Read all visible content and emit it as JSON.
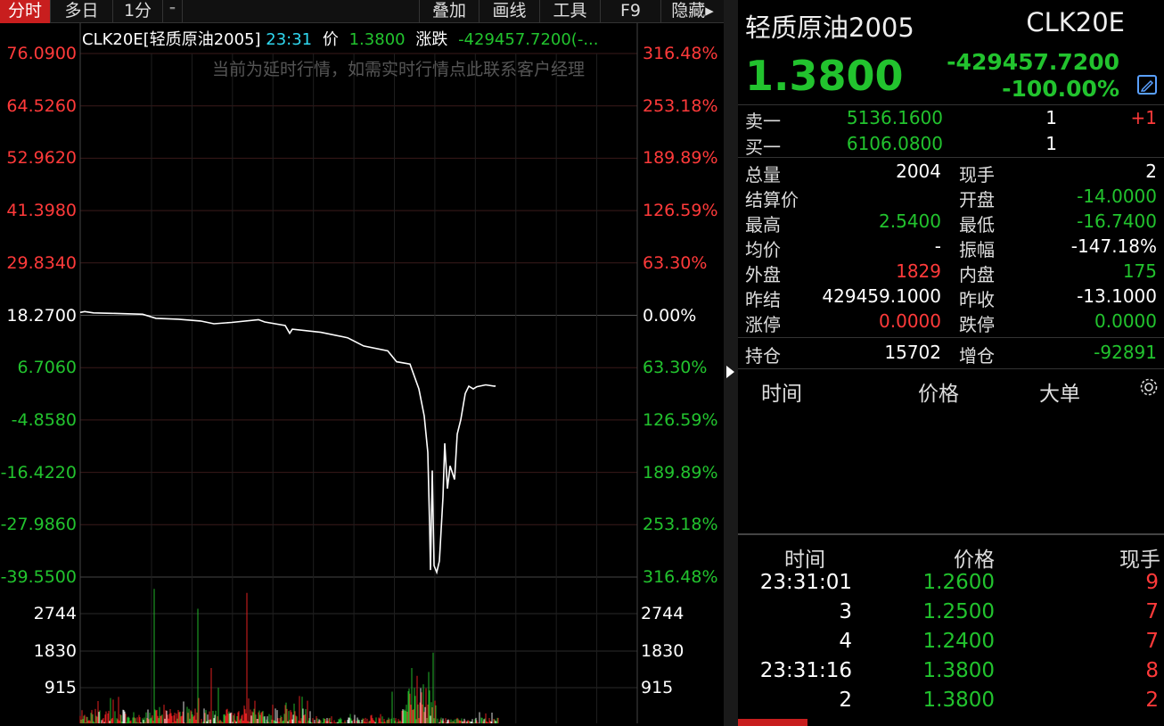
{
  "toolbar": {
    "tabs": [
      "分时",
      "多日",
      "1分",
      "⁼"
    ],
    "right_buttons": [
      "叠加",
      "画线",
      "工具",
      "F9",
      "隐藏▸"
    ]
  },
  "chart": {
    "symbol_label": "CLK20E[轻质原油2005]",
    "time": "23:31",
    "price_label": "价",
    "price_value": "1.3800",
    "change_label": "涨跌",
    "change_value": "-429457.7200(-...",
    "notice": "当前为延时行情，如需实时行情点此联系客户经理",
    "y_left": [
      "76.0900",
      "64.5260",
      "52.9620",
      "41.3980",
      "29.8340",
      "18.2700",
      "6.7060",
      "-4.8580",
      "-16.4220",
      "-27.9860",
      "-39.5500"
    ],
    "y_right": [
      "316.48%",
      "253.18%",
      "189.89%",
      "126.59%",
      "63.30%",
      "0.00%",
      "63.30%",
      "126.59%",
      "189.89%",
      "253.18%",
      "316.48%"
    ],
    "vol_left": [
      "2744",
      "1830",
      "915"
    ],
    "vol_right": [
      "2744",
      "1830",
      "915"
    ]
  },
  "chart_data": {
    "type": "line",
    "ylim": [
      -39.55,
      76.09
    ],
    "base": 18.27,
    "price_points": [
      [
        0,
        18.9
      ],
      [
        5,
        19.1
      ],
      [
        15,
        18.8
      ],
      [
        35,
        18.7
      ],
      [
        70,
        18.5
      ],
      [
        85,
        17.6
      ],
      [
        110,
        17.4
      ],
      [
        135,
        17.0
      ],
      [
        150,
        16.4
      ],
      [
        170,
        16.7
      ],
      [
        200,
        17.3
      ],
      [
        207,
        16.8
      ],
      [
        230,
        16.0
      ],
      [
        235,
        14.3
      ],
      [
        238,
        15.2
      ],
      [
        270,
        14.5
      ],
      [
        300,
        13.3
      ],
      [
        318,
        11.5
      ],
      [
        345,
        10.4
      ],
      [
        355,
        8.0
      ],
      [
        370,
        7.5
      ],
      [
        380,
        2.0
      ],
      [
        386,
        -4.0
      ],
      [
        390,
        -12.0
      ],
      [
        392,
        -28.0
      ],
      [
        393,
        -38.0
      ],
      [
        395,
        -16.0
      ],
      [
        397,
        -37.0
      ],
      [
        400,
        -38.5
      ],
      [
        403,
        -36.0
      ],
      [
        407,
        -22.0
      ],
      [
        409,
        -10.0
      ],
      [
        412,
        -20.0
      ],
      [
        415,
        -15.0
      ],
      [
        420,
        -18.0
      ],
      [
        423,
        -8.0
      ],
      [
        427,
        -4.8
      ],
      [
        432,
        1.0
      ],
      [
        436,
        2.6
      ],
      [
        441,
        2.0
      ],
      [
        445,
        2.5
      ],
      [
        455,
        2.9
      ],
      [
        465,
        2.6
      ],
      [
        466,
        2.7
      ]
    ],
    "volume": [
      {
        "i": 83,
        "v": 3400,
        "c": "green"
      },
      {
        "i": 132,
        "v": 2900,
        "c": "green"
      },
      {
        "i": 187,
        "v": 3300,
        "c": "red"
      },
      {
        "i": 147,
        "v": 1400,
        "c": "red"
      },
      {
        "i": 155,
        "v": 900,
        "c": "green"
      },
      {
        "i": 372,
        "v": 1400,
        "c": "green"
      },
      {
        "i": 378,
        "v": 1200,
        "c": "red"
      },
      {
        "i": 240,
        "v": 500,
        "c": "green"
      },
      {
        "i": 350,
        "v": 800,
        "c": "green"
      }
    ],
    "vol_max": 3700
  },
  "quote": {
    "name": "轻质原油2005",
    "code": "CLK20E",
    "price": "1.3800",
    "change": "-429457.7200",
    "change_pct": "-100.00%"
  },
  "orderbook": [
    {
      "label": "卖一",
      "price": "5136.1600",
      "qty": "1",
      "delta": "+1"
    },
    {
      "label": "买一",
      "price": "6106.0800",
      "qty": "1",
      "delta": ""
    }
  ],
  "stats": [
    {
      "l1": "总量",
      "v1": "2004",
      "c1": "white",
      "l2": "现手",
      "v2": "2",
      "c2": "white"
    },
    {
      "l1": "结算价",
      "v1": "",
      "c1": "white",
      "l2": "开盘",
      "v2": "-14.0000",
      "c2": "green"
    },
    {
      "l1": "最高",
      "v1": "2.5400",
      "c1": "green",
      "l2": "最低",
      "v2": "-16.7400",
      "c2": "green"
    },
    {
      "l1": "均价",
      "v1": "-",
      "c1": "white",
      "l2": "振幅",
      "v2": "-147.18%",
      "c2": "white"
    },
    {
      "l1": "外盘",
      "v1": "1829",
      "c1": "red",
      "l2": "内盘",
      "v2": "175",
      "c2": "green"
    },
    {
      "l1": "昨结",
      "v1": "429459.1000",
      "c1": "white",
      "l2": "昨收",
      "v2": "-13.1000",
      "c2": "white"
    },
    {
      "l1": "涨停",
      "v1": "0.0000",
      "c1": "red",
      "l2": "跌停",
      "v2": "0.0000",
      "c2": "green"
    }
  ],
  "position": {
    "l1": "持仓",
    "v1": "15702",
    "l2": "增仓",
    "v2": "-92891"
  },
  "big_orders": {
    "col_time": "时间",
    "col_price": "价格",
    "col_big": "大单"
  },
  "trades": {
    "col_time": "时间",
    "col_price": "价格",
    "col_qty": "现手",
    "rows": [
      {
        "time": "23:31:01",
        "price": "1.2600",
        "qty": "9"
      },
      {
        "time": "3",
        "price": "1.2500",
        "qty": "7"
      },
      {
        "time": "4",
        "price": "1.2400",
        "qty": "7"
      },
      {
        "time": "23:31:16",
        "price": "1.3800",
        "qty": "8"
      },
      {
        "time": "2",
        "price": "1.3800",
        "qty": "2"
      }
    ]
  }
}
